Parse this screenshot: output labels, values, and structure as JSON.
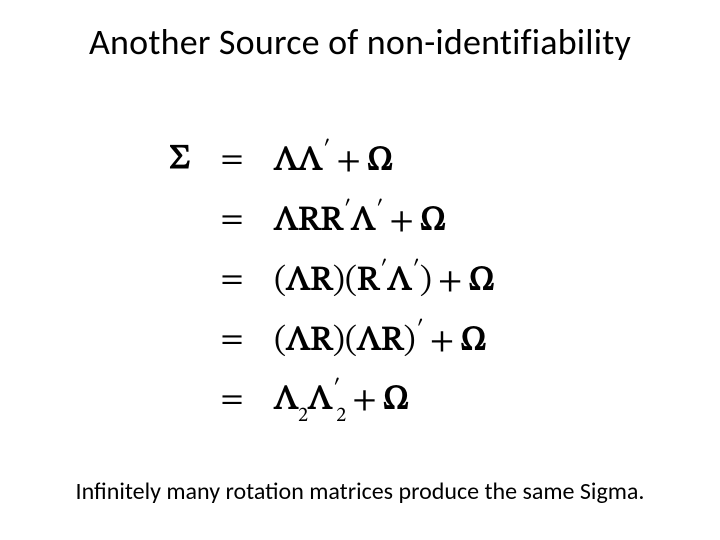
{
  "title": "Another Source of non-identifiability",
  "lhs": "Σ",
  "eq": "=",
  "rows": {
    "r1": "ΛΛ′ + Ω",
    "r2": "ΛRR′Λ′ + Ω",
    "r3": "(ΛR)(R′Λ′) + Ω",
    "r4": "(ΛR)(ΛR)′ + Ω",
    "r5": "Λ₂Λ′₂ + Ω"
  },
  "footnote": "Infinitely many rotation matrices produce the same Sigma.",
  "colors": {
    "background": "#ffffff",
    "text": "#000000"
  },
  "fontsizes": {
    "title": 36,
    "equation": 34,
    "footnote": 24
  }
}
